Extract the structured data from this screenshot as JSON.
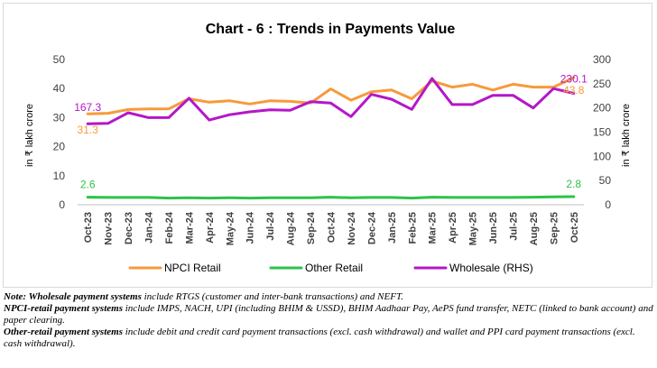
{
  "chart_data": {
    "type": "line",
    "title": "Chart - 6 : Trends in Payments Value",
    "ylabel_left": "in ₹ lakh crore",
    "ylabel_right": "in ₹ lakh crore",
    "ylim_left": [
      0,
      50
    ],
    "ylim_right": [
      0,
      300
    ],
    "yticks_left": [
      "0",
      "10",
      "20",
      "30",
      "40",
      "50"
    ],
    "yticks_right": [
      "0",
      "50",
      "100",
      "150",
      "200",
      "250",
      "300"
    ],
    "categories": [
      "Oct-23",
      "Nov-23",
      "Dec-23",
      "Jan-24",
      "Feb-24",
      "Mar-24",
      "Apr-24",
      "May-24",
      "Jun-24",
      "Jul-24",
      "Aug-24",
      "Sep-24",
      "Oct-24",
      "Nov-24",
      "Dec-24",
      "Jan-25",
      "Feb-25",
      "Mar-25",
      "Apr-25",
      "May-25",
      "Jun-25",
      "Jul-25",
      "Aug-25",
      "Sep-25",
      "Oct-25"
    ],
    "grid": false,
    "legend_position": "bottom",
    "series": [
      {
        "name": "NPCI Retail",
        "axis": "left",
        "color": "#f79a3a",
        "values": [
          31.3,
          31.5,
          32.8,
          33.0,
          33.0,
          36.5,
          35.3,
          35.8,
          34.7,
          35.8,
          35.6,
          35.0,
          39.9,
          36.0,
          38.9,
          39.5,
          36.5,
          42.6,
          40.5,
          41.5,
          39.5,
          41.5,
          40.5,
          40.5,
          43.8
        ]
      },
      {
        "name": "Other Retail",
        "axis": "left",
        "color": "#2ec24a",
        "values": [
          2.6,
          2.5,
          2.5,
          2.5,
          2.3,
          2.4,
          2.3,
          2.4,
          2.3,
          2.4,
          2.4,
          2.4,
          2.6,
          2.4,
          2.5,
          2.5,
          2.3,
          2.6,
          2.5,
          2.5,
          2.5,
          2.5,
          2.6,
          2.7,
          2.8
        ]
      },
      {
        "name": "Wholesale (RHS)",
        "axis": "right",
        "color": "#b417c8",
        "values": [
          167.3,
          168.0,
          190.0,
          180.0,
          180.0,
          220.0,
          175.0,
          186.0,
          192.0,
          196.0,
          195.0,
          213.0,
          210.0,
          182.0,
          228.0,
          218.0,
          197.0,
          261.0,
          207.0,
          207.0,
          226.0,
          226.0,
          200.0,
          240.0,
          230.1
        ]
      }
    ],
    "data_labels": [
      {
        "series": "Wholesale (RHS)",
        "index": 0,
        "text": "167.3"
      },
      {
        "series": "NPCI Retail",
        "index": 0,
        "text": "31.3"
      },
      {
        "series": "Other Retail",
        "index": 0,
        "text": "2.6"
      },
      {
        "series": "Wholesale (RHS)",
        "index": 24,
        "text": "230.1"
      },
      {
        "series": "NPCI Retail",
        "index": 24,
        "text": "43.8"
      },
      {
        "series": "Other Retail",
        "index": 24,
        "text": "2.8"
      }
    ]
  },
  "notes": [
    {
      "lead": "Note: Wholesale payment systems",
      "rest": " include RTGS (customer and inter-bank transactions) and NEFT."
    },
    {
      "lead": "NPCI-retail payment systems",
      "rest": " include IMPS, NACH, UPI (including BHIM & USSD), BHIM Aadhaar Pay, AePS fund transfer, NETC (linked to bank account) and paper clearing."
    },
    {
      "lead": "Other-retail payment systems",
      "rest": " include debit and credit card payment transactions (excl. cash withdrawal) and wallet and PPI card payment transactions (excl. cash withdrawal)."
    }
  ]
}
